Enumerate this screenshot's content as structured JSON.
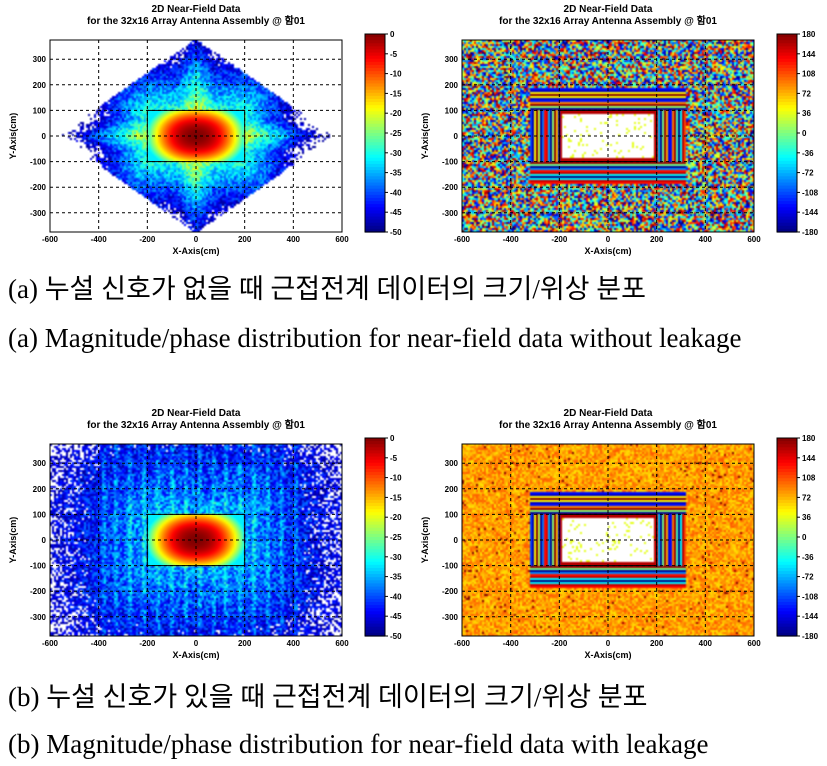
{
  "captions": {
    "a_korean": "(a) 누설 신호가 없을 때 근접전계 데이터의 크기/위상 분포",
    "a_english": "(a) Magnitude/phase distribution for near-field data without leakage",
    "b_korean": "(b) 누설 신호가 있을 때 근접전계 데이터의 크기/위상 분포",
    "b_english": "(b) Magnitude/phase distribution for near-field data with leakage"
  },
  "chart_data": [
    {
      "id": "a-magnitude",
      "type": "heatmap",
      "quantity": "magnitude",
      "leakage": false,
      "title": "2D Near-Field Data",
      "subtitle": "for the 32x16 Array Antenna Assembly @ 함01",
      "xlabel": "X-Axis(cm)",
      "ylabel": "Y-Axis(cm)",
      "xlim": [
        -600,
        600
      ],
      "ylim": [
        -375,
        375
      ],
      "xticks": [
        -600,
        -400,
        -200,
        0,
        200,
        400,
        600
      ],
      "yticks": [
        -300,
        -200,
        -100,
        0,
        100,
        200,
        300
      ],
      "colorbar": {
        "min": -50,
        "max": 0,
        "ticks": [
          0,
          -5,
          -10,
          -15,
          -20,
          -25,
          -30,
          -35,
          -40,
          -45,
          -50
        ]
      },
      "grid": "dashed",
      "outlined_region": {
        "x": [
          -200,
          200
        ],
        "y": [
          -100,
          100
        ]
      }
    },
    {
      "id": "a-phase",
      "type": "heatmap",
      "quantity": "phase",
      "leakage": false,
      "title": "2D Near-Field Data",
      "subtitle": "for the 32x16 Array Antenna Assembly @ 함01",
      "xlabel": "X-Axis(cm)",
      "ylabel": "Y-Axis(cm)",
      "xlim": [
        -600,
        600
      ],
      "ylim": [
        -375,
        375
      ],
      "xticks": [
        -600,
        -400,
        -200,
        0,
        200,
        400,
        600
      ],
      "yticks": [
        -300,
        -200,
        -100,
        0,
        100,
        200,
        300
      ],
      "colorbar": {
        "min": -180,
        "max": 180,
        "ticks": [
          180,
          144,
          108,
          72,
          36,
          0,
          -36,
          -72,
          -108,
          -144,
          -180
        ]
      },
      "grid": "dashed",
      "outlined_region": {
        "x": [
          -200,
          200
        ],
        "y": [
          -100,
          100
        ]
      }
    },
    {
      "id": "b-magnitude",
      "type": "heatmap",
      "quantity": "magnitude",
      "leakage": true,
      "title": "2D Near-Field Data",
      "subtitle": "for the 32x16 Array Antenna Assembly @ 함01",
      "xlabel": "X-Axis(cm)",
      "ylabel": "Y-Axis(cm)",
      "xlim": [
        -600,
        600
      ],
      "ylim": [
        -375,
        375
      ],
      "xticks": [
        -600,
        -400,
        -200,
        0,
        200,
        400,
        600
      ],
      "yticks": [
        -300,
        -200,
        -100,
        0,
        100,
        200,
        300
      ],
      "colorbar": {
        "min": -50,
        "max": 0,
        "ticks": [
          0,
          -5,
          -10,
          -15,
          -20,
          -25,
          -30,
          -35,
          -40,
          -45,
          -50
        ]
      },
      "grid": "dashed",
      "outlined_region": {
        "x": [
          -200,
          200
        ],
        "y": [
          -100,
          100
        ]
      }
    },
    {
      "id": "b-phase",
      "type": "heatmap",
      "quantity": "phase",
      "leakage": true,
      "title": "2D Near-Field Data",
      "subtitle": "for the 32x16 Array Antenna Assembly @ 함01",
      "xlabel": "X-Axis(cm)",
      "ylabel": "Y-Axis(cm)",
      "xlim": [
        -600,
        600
      ],
      "ylim": [
        -375,
        375
      ],
      "xticks": [
        -600,
        -400,
        -200,
        0,
        200,
        400,
        600
      ],
      "yticks": [
        -300,
        -200,
        -100,
        0,
        100,
        200,
        300
      ],
      "colorbar": {
        "min": -180,
        "max": 180,
        "ticks": [
          180,
          144,
          108,
          72,
          36,
          0,
          -36,
          -72,
          -108,
          -144,
          -180
        ]
      },
      "grid": "dashed",
      "outlined_region": {
        "x": [
          -200,
          200
        ],
        "y": [
          -100,
          100
        ]
      }
    }
  ]
}
